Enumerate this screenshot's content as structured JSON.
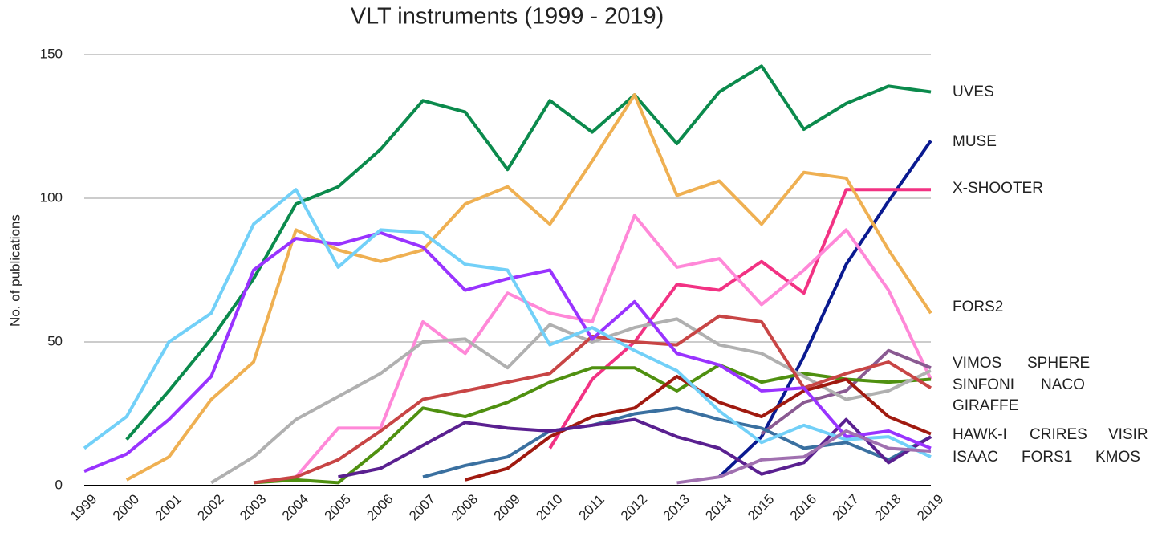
{
  "chart_data": {
    "type": "line",
    "title": "VLT instruments (1999 - 2019)",
    "y_label": "No. of publications",
    "categories": [
      "1999",
      "2000",
      "2001",
      "2002",
      "2003",
      "2004",
      "2005",
      "2006",
      "2007",
      "2008",
      "2009",
      "2010",
      "2011",
      "2012",
      "2013",
      "2014",
      "2015",
      "2016",
      "2017",
      "2018",
      "2019"
    ],
    "ylim": [
      0,
      150
    ],
    "yticks": [
      0,
      50,
      100,
      150
    ],
    "grid": true,
    "series": [
      {
        "name": "UVES",
        "color": "#0b8a4c",
        "values": [
          null,
          16,
          33,
          51,
          72,
          98,
          104,
          117,
          134,
          130,
          110,
          134,
          123,
          136,
          119,
          137,
          146,
          124,
          133,
          139,
          137
        ]
      },
      {
        "name": "MUSE",
        "color": "#0a1a90",
        "values": [
          null,
          null,
          null,
          null,
          null,
          null,
          null,
          null,
          null,
          null,
          null,
          null,
          null,
          null,
          null,
          3,
          17,
          45,
          77,
          99,
          120
        ]
      },
      {
        "name": "X-SHOOTER",
        "color": "#f23283",
        "values": [
          null,
          null,
          null,
          null,
          null,
          null,
          null,
          null,
          null,
          null,
          null,
          13,
          37,
          50,
          70,
          68,
          78,
          67,
          103,
          103,
          103
        ]
      },
      {
        "name": "FORS2",
        "color": "#efb052",
        "values": [
          null,
          2,
          10,
          30,
          43,
          89,
          82,
          78,
          82,
          98,
          104,
          91,
          113,
          136,
          101,
          106,
          91,
          109,
          107,
          82,
          60
        ]
      },
      {
        "name": "VIMOS",
        "color": "#ff88d8",
        "values": [
          null,
          null,
          null,
          null,
          null,
          3,
          20,
          20,
          57,
          46,
          67,
          60,
          57,
          94,
          76,
          79,
          63,
          75,
          89,
          68,
          37
        ]
      },
      {
        "name": "SPHERE",
        "color": "#8a5a92",
        "values": [
          null,
          null,
          null,
          null,
          null,
          null,
          null,
          null,
          null,
          null,
          null,
          null,
          null,
          null,
          null,
          null,
          18,
          29,
          33,
          47,
          41
        ]
      },
      {
        "name": "SINFONI",
        "color": "#4f9010",
        "values": [
          null,
          null,
          null,
          null,
          1,
          2,
          1,
          13,
          27,
          24,
          29,
          36,
          41,
          41,
          33,
          42,
          36,
          39,
          37,
          36,
          37
        ]
      },
      {
        "name": "NACO",
        "color": "#b0b0b0",
        "values": [
          null,
          null,
          null,
          1,
          10,
          23,
          31,
          39,
          50,
          51,
          41,
          56,
          50,
          55,
          58,
          49,
          46,
          38,
          30,
          33,
          40
        ]
      },
      {
        "name": "GIRAFFE",
        "color": "#a01a10",
        "values": [
          null,
          null,
          null,
          null,
          null,
          null,
          null,
          null,
          null,
          2,
          6,
          17,
          24,
          27,
          38,
          29,
          24,
          33,
          37,
          24,
          18
        ]
      },
      {
        "name": "HAWK-I",
        "color": "#c84545",
        "values": [
          null,
          null,
          null,
          null,
          1,
          3,
          9,
          19,
          30,
          33,
          36,
          39,
          52,
          50,
          49,
          59,
          57,
          34,
          39,
          43,
          34
        ]
      },
      {
        "name": "CRIRES",
        "color": "#3a70a0",
        "values": [
          null,
          null,
          null,
          null,
          null,
          null,
          null,
          null,
          3,
          7,
          10,
          19,
          21,
          25,
          27,
          23,
          20,
          13,
          15,
          9,
          17
        ]
      },
      {
        "name": "VISIR",
        "color": "#5a2090",
        "values": [
          null,
          null,
          null,
          null,
          null,
          null,
          3,
          6,
          14,
          22,
          20,
          19,
          21,
          23,
          17,
          13,
          4,
          8,
          23,
          8,
          17
        ]
      },
      {
        "name": "ISAAC",
        "color": "#9933ff",
        "values": [
          5,
          11,
          23,
          38,
          75,
          86,
          84,
          88,
          83,
          68,
          72,
          75,
          51,
          64,
          46,
          42,
          33,
          34,
          17,
          19,
          13
        ]
      },
      {
        "name": "FORS1",
        "color": "#72d0f8",
        "values": [
          13,
          24,
          50,
          60,
          91,
          103,
          76,
          89,
          88,
          77,
          75,
          49,
          55,
          47,
          40,
          26,
          15,
          21,
          16,
          17,
          10
        ]
      },
      {
        "name": "KMOS",
        "color": "#a070b0",
        "values": [
          null,
          null,
          null,
          null,
          null,
          null,
          null,
          null,
          null,
          null,
          null,
          null,
          null,
          null,
          1,
          3,
          9,
          10,
          19,
          13,
          12
        ]
      }
    ]
  }
}
